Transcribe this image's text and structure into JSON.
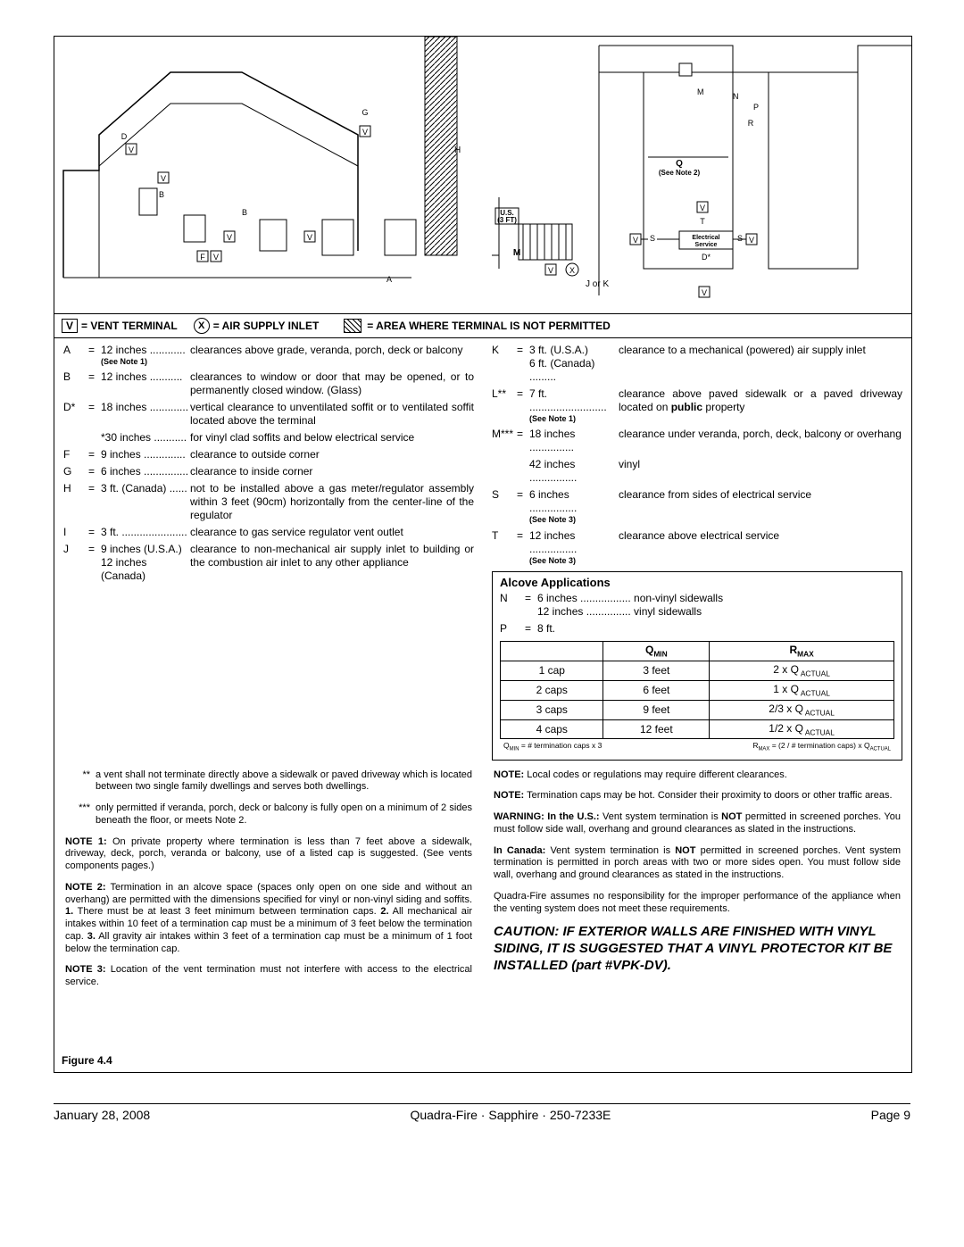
{
  "legend": {
    "vent": "= VENT  TERMINAL",
    "air": "= AIR SUPPLY INLET",
    "area": "= AREA WHERE TERMINAL IS NOT PERMITTED",
    "vsym": "V",
    "xsym": "X"
  },
  "left_clr": [
    {
      "k": "A",
      "eq": "=",
      "v": "12 inches ............",
      "d": "clearances above grade, veranda, porch, deck or balcony",
      "see": "(See Note 1)"
    },
    {
      "k": "B",
      "eq": "=",
      "v": "12 inches ...........",
      "d": "clearances to window or door that may be opened, or to permanently closed window. (Glass)"
    },
    {
      "k": "D*",
      "eq": "=",
      "v": "18 inches .............",
      "d": "vertical clearance to unventilated soffit or to ventilated soffit located above the terminal"
    },
    {
      "k": "",
      "eq": "",
      "v": "*30 inches ...........",
      "d": "for vinyl clad soffits and below electrical service"
    },
    {
      "k": "F",
      "eq": "=",
      "v": "9 inches ..............",
      "d": "clearance to outside corner"
    },
    {
      "k": "G",
      "eq": "=",
      "v": "6 inches ...............",
      "d": "clearance to inside corner"
    },
    {
      "k": "H",
      "eq": "=",
      "v": "3 ft. (Canada) ......",
      "d": "not to be installed above a gas meter/regulator assembly within 3 feet (90cm) horizontally from the center-line of the regulator"
    },
    {
      "k": "I",
      "eq": "=",
      "v": "3 ft. ......................",
      "d": "clearance to gas service regulator vent outlet"
    },
    {
      "k": "J",
      "eq": "=",
      "v": "9 inches (U.S.A.)\n12 inches (Canada)",
      "d": "clearance to non-mechanical air supply inlet to building or the combustion air inlet to any other appliance"
    }
  ],
  "right_clr": [
    {
      "k": "K",
      "eq": "=",
      "v": "3 ft. (U.S.A.)\n6 ft. (Canada) .........",
      "d": "clearance to a mechanical (powered) air supply inlet"
    },
    {
      "k": "L**",
      "eq": "=",
      "v": "7 ft. ..........................",
      "d": "clearance above paved sidewalk or a paved driveway located on <b>public</b> property",
      "see": "(See Note 1)"
    },
    {
      "k": "M***",
      "eq": "=",
      "v": "18 inches ...............",
      "d": "clearance under veranda, porch, deck, balcony or overhang"
    },
    {
      "k": "",
      "eq": "",
      "v": "42 inches ................",
      "d": "vinyl"
    },
    {
      "k": "S",
      "eq": "=",
      "v": "6 inches ................",
      "d": "clearance from sides of electrical service",
      "see": "(See Note 3)"
    },
    {
      "k": "T",
      "eq": "=",
      "v": "12 inches ................",
      "d": "clearance above electrical service",
      "see": "(See Note 3)"
    }
  ],
  "alcove": {
    "title": "Alcove  Applications",
    "n": "6 inches ................. non-vinyl sidewalls",
    "n2": "12 inches ............... vinyl sidewalls",
    "p": "8 ft.",
    "headers": [
      "",
      "Q",
      "R"
    ],
    "subheaders": [
      "MIN",
      "MAX"
    ],
    "rows": [
      [
        "1 cap",
        "3 feet",
        "2 x Q"
      ],
      [
        "2 caps",
        "6 feet",
        "1 x Q"
      ],
      [
        "3 caps",
        "9 feet",
        "2/3 x Q"
      ],
      [
        "4 caps",
        "12 feet",
        "1/2 x Q"
      ]
    ],
    "act": " ACTUAL",
    "formula_l": "Q<sub>MIN</sub> = # termination caps x 3",
    "formula_r": "R<sub>MAX</sub> = (2 / # termination caps)  x Q<sub>ACTUAL</sub>"
  },
  "fn_left": [
    {
      "k": "**",
      "t": "a vent shall not terminate directly above a sidewalk or paved driveway which is located between two single family dwellings and serves both dwellings."
    },
    {
      "k": "***",
      "t": "only permitted if veranda, porch, deck or balcony is fully open on a minimum of 2 sides beneath the floor, or meets Note 2."
    }
  ],
  "notes_left": [
    "<b>NOTE 1:</b>  On private property where termination is less than 7 feet above a sidewalk, driveway, deck, porch, veranda or balcony, use of a listed cap is suggested.  (See vents components pages.)",
    "<b>NOTE 2:</b>  Termination in an alcove space (spaces only open on one side and without an overhang) are permitted with the dimensions specified for vinyl or non-vinyl siding and soffits.  <b>1.</b> There must be at least 3 feet minimum between termination caps. <b>2.</b> All mechanical air intakes within 10 feet of a termination cap must be a minimum of 3 feet below the termination cap. <b>3.</b> All gravity air intakes within 3 feet of a termination cap must be a minimum of 1 foot below the termination cap.",
    "<b>NOTE 3:</b>  Location of the vent termination must not interfere with access to the electrical service."
  ],
  "notes_right": [
    "<b>NOTE:</b>    Local codes or regulations may require different clearances.",
    "<b>NOTE:</b>  Termination caps may be hot.  Consider their proximity to doors or other traffic areas.",
    "<b>WARNING: In the U.S.:</b>  Vent system termination is <b>NOT</b> permitted in screened porches.  You must follow side wall, overhang and ground clearances as slated in the instructions.",
    "<b>In Canada:</b>  Vent system termination is <b>NOT</b> permitted in screened porches.  Vent system termination is permitted in porch areas with two or more sides open.  You must follow side wall, overhang and ground clearances as stated in the instructions.",
    "Quadra-Fire assumes no responsibility for the improper performance of the appliance when the venting system does not meet these requirements."
  ],
  "caution_lead": "CAUTION:",
  "caution": " IF EXTERIOR WALLS ARE FINISHED WITH VINYL SIDING, IT IS SUGGESTED THAT A VINYL PROTECTOR KIT BE INSTALLED (part #VPK-DV).",
  "figure": "Figure 4.4",
  "footer": {
    "left": "January 28, 2008",
    "center": "Quadra-Fire · Sapphire · 250-7233E",
    "right": "Page  9"
  }
}
